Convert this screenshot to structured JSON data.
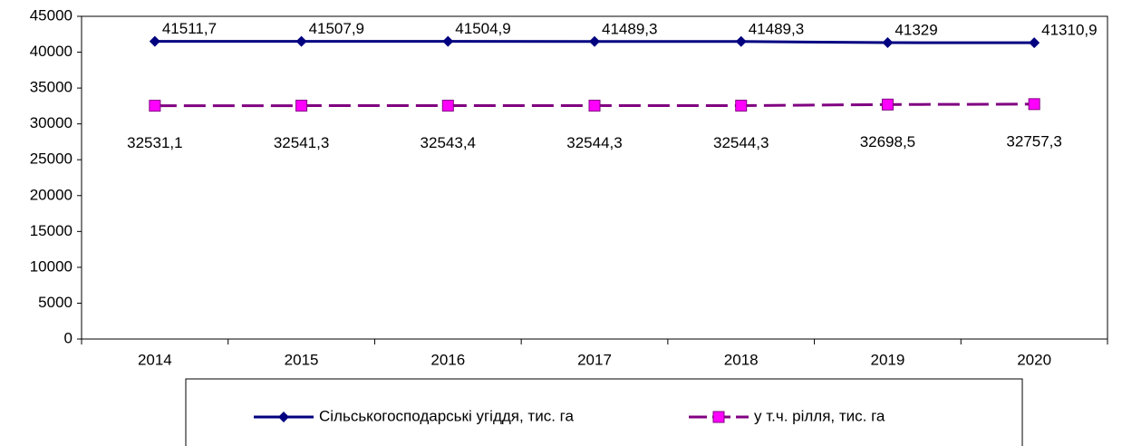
{
  "chart_data": {
    "type": "line",
    "categories": [
      "2014",
      "2015",
      "2016",
      "2017",
      "2018",
      "2019",
      "2020"
    ],
    "series": [
      {
        "name": "Сільськогосподарські угіддя, тис. га",
        "color": "#000080",
        "marker": "diamond",
        "dash": false,
        "values": [
          41511.7,
          41507.9,
          41504.9,
          41489.3,
          41489.3,
          41329,
          41310.9
        ],
        "value_labels": [
          "41511,7",
          "41507,9",
          "41504,9",
          "41489,3",
          "41489,3",
          "41329",
          "41310,9"
        ]
      },
      {
        "name": "у т.ч. рілля, тис. га",
        "color": "#800080",
        "marker_fill": "#ff00ff",
        "marker": "square",
        "dash": true,
        "values": [
          32531.1,
          32541.3,
          32543.4,
          32544.3,
          32544.3,
          32698.5,
          32757.3
        ],
        "value_labels": [
          "32531,1",
          "32541,3",
          "32543,4",
          "32544,3",
          "32544,3",
          "32698,5",
          "32757,3"
        ]
      }
    ],
    "ylim": [
      0,
      45000
    ],
    "yticks": [
      0,
      5000,
      10000,
      15000,
      20000,
      25000,
      30000,
      35000,
      40000,
      45000
    ],
    "grid": false,
    "legend": "bottom"
  }
}
